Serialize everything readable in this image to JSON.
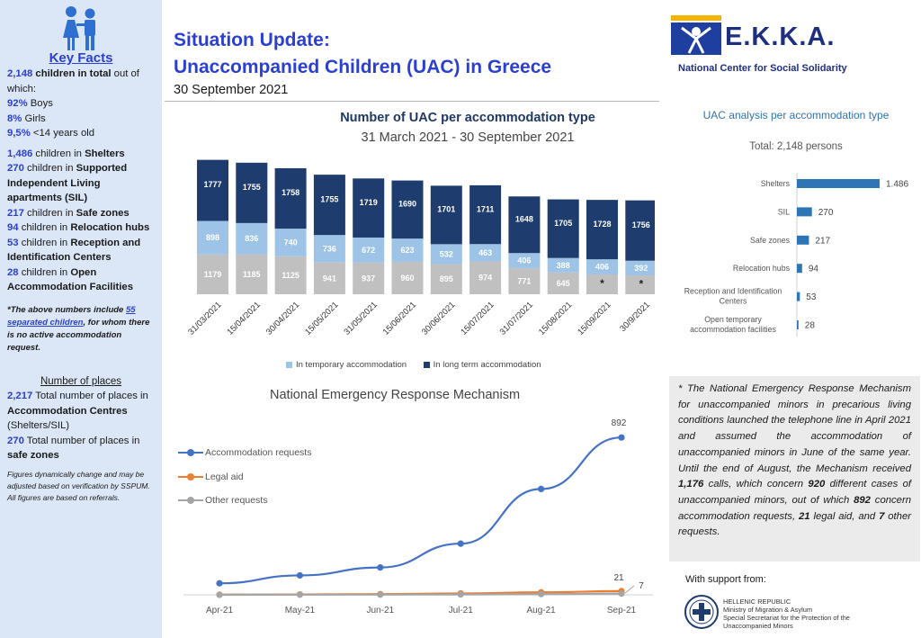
{
  "sidebar": {
    "title": "Key Facts",
    "total_num": "2,148",
    "total_a": "children in total",
    "total_b": "out of which:",
    "boys_pct": "92%",
    "boys_lbl": "Boys",
    "girls_pct": "8%",
    "girls_lbl": "Girls",
    "u14_pct": "9,5%",
    "u14_lbl": "<14 years old",
    "shelters_num": "1,486",
    "shelters_a": "children in",
    "shelters_b": "Shelters",
    "sil_num": "270",
    "sil_a": "children in",
    "sil_b": "Supported Independent Living apartments (SIL)",
    "safe_num": "217",
    "safe_a": "children in",
    "safe_b": "Safe zones",
    "reloc_num": "94",
    "reloc_a": "children in",
    "reloc_b": "Relocation hubs",
    "ric_num": "53",
    "ric_a": "children in",
    "ric_b": "Reception and Identification Centers",
    "open_num": "28",
    "open_a": "children in",
    "open_b": "Open Accommodation Facilities",
    "note_a": "*The above numbers include",
    "note_num": "55",
    "note_b": "separated children",
    "note_c": ", for whom there is no active accommodation request.",
    "places_title": "Number of places",
    "places1_num": "2,217",
    "places1_a": "Total number of places in",
    "places1_b": "Accommodation Centres",
    "places1_c": "(Shelters/SIL)",
    "places2_num": "270",
    "places2_a": "Total number of places in",
    "places2_b": "safe zones",
    "fine": "Figures dynamically change and may be adjusted based on verification by SSPUM. All figures are based on referrals."
  },
  "header": {
    "title_line1": "Situation Update:",
    "title_line2": "Unaccompanied Children (UAC) in Greece",
    "date": "30 September 2021"
  },
  "logo": {
    "name": "E.K.K.A.",
    "subtitle": "National Center for Social Solidarity"
  },
  "colors": {
    "long_term": "#1f3c6e",
    "temporary": "#9dc3e6",
    "other": "#c0c0c0",
    "accommodation": "#4472c4",
    "legal": "#ed7d31",
    "other_requests": "#a5a5a5",
    "hbar": "#2e75b6"
  },
  "chart_data": [
    {
      "type": "bar",
      "title": "Number of UAC per accommodation type",
      "subtitle": "31 March 2021 - 30 September 2021",
      "categories": [
        "31/03/2021",
        "15/04/2021",
        "30/04/2021",
        "15/05/2021",
        "31/05/2021",
        "15/06/2021",
        "30/06/2021",
        "15/07/2021",
        "31/07/2021",
        "15/08/2021",
        "15/09/2021",
        "30/9/2021"
      ],
      "series": [
        {
          "values": [
            1179,
            1185,
            1125,
            941,
            937,
            960,
            895,
            974,
            771,
            645,
            null,
            null
          ],
          "bottom_labels": [
            "1179",
            "1185",
            "1125",
            "941",
            "937",
            "960",
            "895",
            "974",
            "771",
            "645",
            "*",
            "*"
          ]
        },
        {
          "name": "In temporary accommodation",
          "values": [
            898,
            836,
            740,
            736,
            672,
            623,
            532,
            463,
            406,
            388,
            406,
            392
          ]
        },
        {
          "name": "In long term accommodation",
          "values": [
            1777,
            1755,
            1758,
            1755,
            1719,
            1690,
            1701,
            1711,
            1648,
            1705,
            1728,
            1756
          ]
        }
      ],
      "legend": "bottom",
      "stacked": true
    },
    {
      "type": "line",
      "title": "National Emergency Response Mechanism",
      "categories": [
        "Apr-21",
        "May-21",
        "Jun-21",
        "Jul-21",
        "Aug-21",
        "Sep-21"
      ],
      "series": [
        {
          "name": "Accommodation requests",
          "values": [
            65,
            110,
            155,
            290,
            600,
            892
          ],
          "labels": [
            "",
            "",
            "",
            "",
            "",
            "892"
          ]
        },
        {
          "name": "Legal aid",
          "values": [
            1,
            2,
            4,
            8,
            14,
            21
          ],
          "labels": [
            "",
            "",
            "",
            "",
            "",
            "21"
          ]
        },
        {
          "name": "Other requests",
          "values": [
            0,
            1,
            1,
            2,
            4,
            7
          ],
          "labels": [
            "",
            "",
            "",
            "",
            "",
            "7"
          ]
        }
      ],
      "legend": "left"
    },
    {
      "type": "bar",
      "orientation": "horizontal",
      "title": "UAC analysis per accommodation type",
      "subtitle": "Total: 2,148 persons",
      "categories": [
        "Shelters",
        "SIL",
        "Safe zones",
        "Relocation hubs",
        "Reception and Identification Centers",
        "Open temporary accommodation facilities"
      ],
      "values": [
        1486,
        270,
        217,
        94,
        53,
        28
      ],
      "value_labels": [
        "1.486",
        "270",
        "217",
        "94",
        "53",
        "28"
      ]
    }
  ],
  "footnote": {
    "p1": "* The National Emergency Response Mechanism for unaccompanied minors in precarious living conditions launched the telephone line in April 2021 and assumed the accommodation of unaccompanied minors in June of the same year. Until the end of August, the Mechanism received ",
    "calls": "1,176",
    "p2": " calls, which concern ",
    "cases": "920",
    "p3": " different cases of unaccompanied minors, out of which ",
    "acc": "892",
    "p4": " concern accommodation requests, ",
    "legal": "21",
    "p5": " legal aid, and ",
    "other": "7",
    "p6": " other requests."
  },
  "support": {
    "label": "With support from:",
    "line1": "HELLENIC REPUBLIC",
    "line2": "Ministry of Migration & Asylum",
    "line3": "Special Secretariat for the Protection of the",
    "line4": "Unaccompanied Minors"
  }
}
